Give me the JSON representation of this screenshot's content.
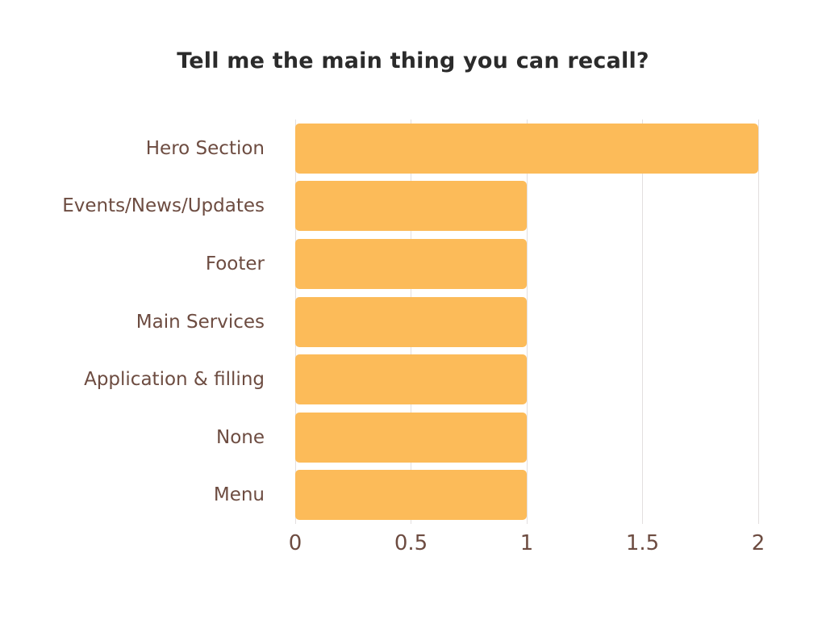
{
  "title": "Tell me the main thing you can recall?",
  "colors": {
    "bar": "#FCBB59",
    "label": "#6D4C41",
    "title": "#2B2B2B",
    "gridline": "#E3DFDF",
    "background": "#FFFFFF"
  },
  "chart_data": {
    "type": "bar",
    "orientation": "horizontal",
    "title": "Tell me the main thing you can recall?",
    "categories": [
      "Hero Section",
      "Events/News/Updates",
      "Footer",
      "Main Services",
      "Application & filling",
      "None",
      "Menu"
    ],
    "values": [
      2,
      1,
      1,
      1,
      1,
      1,
      1
    ],
    "xlabel": "",
    "ylabel": "",
    "xlim": [
      0,
      2
    ],
    "xticks": [
      0,
      0.5,
      1,
      1.5,
      2
    ],
    "xtick_labels": [
      "0",
      "0.5",
      "1",
      "1.5",
      "2"
    ],
    "grid": true,
    "legend": false
  }
}
